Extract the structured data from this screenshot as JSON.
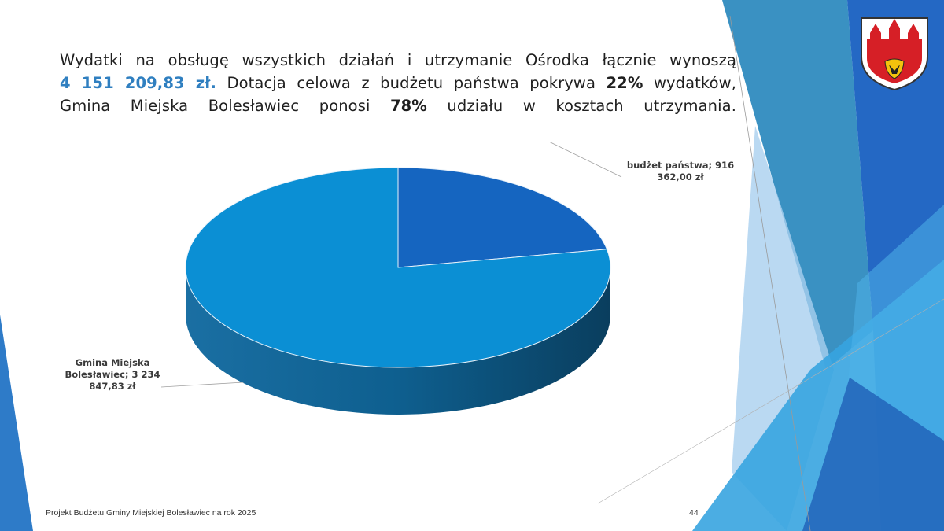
{
  "intro": {
    "line1_text": "Wydatki na obsługę wszystkich działań i utrzymanie Ośrodka łącznie wynoszą",
    "line2_amount": "4 151 209,83 zł.",
    "line2_text_a": " Dotacja celowa z budżetu państwa pokrywa ",
    "line2_pct": "22%",
    "line2_text_b": " wydatków,",
    "line3_text_a": "Gmina Miejska Bolesławiec ponosi ",
    "line3_pct": "78%",
    "line3_text_b": " udziału w kosztach utrzymania."
  },
  "chart_data": {
    "type": "pie",
    "style": "3d",
    "slices": [
      {
        "label": "budżet państwa; 916 362,00 zł",
        "value": 916362.0,
        "color": "#1565c0"
      },
      {
        "label": "Gmina Miejska Bolesławiec; 3 234 847,83 zł",
        "value": 3234847.83,
        "color": "#0b8fd4"
      }
    ]
  },
  "footer": {
    "title": "Projekt Budżetu Gminy Miejskiej Bolesławiec na rok 2025",
    "page": "44"
  },
  "colors": {
    "accent": "#2f7fc0",
    "deco_dark": "#1a66b8",
    "deco_light": "#3aa4de"
  }
}
